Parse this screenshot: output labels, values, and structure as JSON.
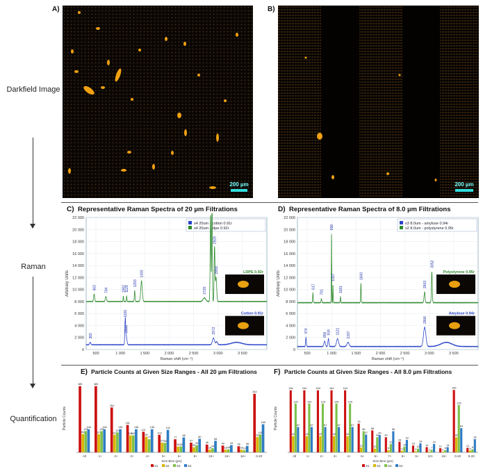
{
  "stages": [
    "Darkfield Image",
    "Raman",
    "Quantification"
  ],
  "panelA": {
    "label": "A)",
    "scale_label": "200 µm"
  },
  "panelB": {
    "label": "B)",
    "scale_label": "200 µm"
  },
  "panelC": {
    "label": "C)",
    "title": "Representative Raman Spectra of 20 µm Filtrations"
  },
  "panelD": {
    "label": "D)",
    "title": "Representative Raman Spectra of 8.0 µm Filtrations"
  },
  "panelE": {
    "label": "E)",
    "title": "Particle Counts at Given Size Ranges - All 20 µm Filtrations"
  },
  "panelF": {
    "label": "F)",
    "title": "Particle Counts at Given Size Ranges - All 8.0 µm Filtrations"
  },
  "colors": {
    "green": "#2e8b2e",
    "blue": "#2a44c8",
    "red": "#cc1111",
    "yellow": "#d8b400",
    "lightgreen": "#7cc04a",
    "midblue": "#2f7cc4"
  },
  "chart_data": [
    {
      "id": "C",
      "type": "line",
      "xlabel": "Raman shift (cm⁻¹)",
      "ylabel": "Arbitrary Units",
      "xlim": [
        300,
        4000
      ],
      "ylim": [
        0,
        22000
      ],
      "x_ticks": [
        500,
        1000,
        1500,
        2000,
        2500,
        3000,
        3500
      ],
      "x_tick_labels": [
        "500",
        "1 000",
        "1 500",
        "2 000",
        "2 500",
        "3 000",
        "3 500"
      ],
      "y_ticks": [
        0,
        2000,
        4000,
        6000,
        8000,
        10000,
        12000,
        14000,
        16000,
        18000,
        20000,
        22000
      ],
      "y_tick_labels": [
        "0",
        "2 000",
        "4 000",
        "6 000",
        "8 000",
        "10 000",
        "12 000",
        "14 000",
        "16 000",
        "18 000",
        "20 000",
        "22 000"
      ],
      "legend": [
        "s4 20um - cotton 0.91r",
        "s4 20um - ldpe 0.92r"
      ],
      "series": [
        {
          "name": "s4 20um - ldpe 0.92r",
          "color": "green",
          "baseline": 8000,
          "peaks": [
            [
              463,
              1200,
              15
            ],
            [
              704,
              800,
              18
            ],
            [
              1062,
              900,
              8
            ],
            [
              1129,
              900,
              8
            ],
            [
              1293,
              1800,
              10
            ],
            [
              1433,
              3400,
              22
            ],
            [
              2720,
              600,
              40
            ],
            [
              2847,
              14500,
              12
            ],
            [
              2877,
              18000,
              10
            ],
            [
              2929,
              9000,
              12
            ],
            [
              2959,
              4000,
              18
            ]
          ]
        },
        {
          "name": "s4 20um - cotton 0.91r",
          "color": "blue",
          "baseline": 800,
          "peaks": [
            [
              383,
              400,
              18
            ],
            [
              1100,
              4000,
              12
            ],
            [
              1120,
              1400,
              20
            ],
            [
              2906,
              1100,
              30
            ],
            [
              2972,
              500,
              25
            ],
            [
              3380,
              400,
              150
            ]
          ]
        }
      ],
      "peak_labels_top": [
        "463",
        "704",
        "1062",
        "1129",
        "1293",
        "1433",
        "2720",
        "2847",
        "2877",
        "2929",
        "2959"
      ],
      "peak_labels_bottom": [
        "383",
        "1100",
        "2906",
        "2972"
      ],
      "insets": [
        "LDPE 0.92r",
        "Cotton 0.91r"
      ]
    },
    {
      "id": "D",
      "type": "line",
      "xlabel": "Raman shift (cm⁻¹)",
      "ylabel": "Arbitrary Units",
      "xlim": [
        300,
        4000
      ],
      "ylim": [
        0,
        22000
      ],
      "x_ticks": [
        500,
        1000,
        1500,
        2000,
        2500,
        3000,
        3500
      ],
      "x_tick_labels": [
        "500",
        "1 000",
        "1 500",
        "2 000",
        "2 500",
        "3 000",
        "3 500"
      ],
      "y_ticks": [
        0,
        2000,
        4000,
        6000,
        8000,
        10000,
        12000,
        14000,
        16000,
        18000,
        20000,
        22000
      ],
      "y_tick_labels": [
        "0",
        "2 000",
        "4 000",
        "6 000",
        "8 000",
        "10 000",
        "12 000",
        "14 000",
        "16 000",
        "18 000",
        "20 000",
        "22 000"
      ],
      "legend": [
        "s3 8.0um - amylose 0.94r",
        "s2 8.0um - polystyrene 0.95r"
      ],
      "series": [
        {
          "name": "s2 8.0um - polystyrene 0.95r",
          "color": "green",
          "baseline": 7800,
          "peaks": [
            [
              617,
              1600,
              8
            ],
            [
              791,
              700,
              10
            ],
            [
              998,
              11500,
              6
            ],
            [
              1027,
              3000,
              6
            ],
            [
              1181,
              1000,
              8
            ],
            [
              1600,
              3200,
              8
            ],
            [
              2903,
              1800,
              15
            ],
            [
              3052,
              5200,
              12
            ]
          ]
        },
        {
          "name": "s3 8.0um - amylose 0.94r",
          "color": "blue",
          "baseline": 500,
          "peaks": [
            [
              474,
              1500,
              10
            ],
            [
              856,
              900,
              20
            ],
            [
              934,
              1300,
              15
            ],
            [
              1121,
              1300,
              30
            ],
            [
              1337,
              700,
              30
            ],
            [
              2906,
              3200,
              35
            ],
            [
              3350,
              700,
              160
            ]
          ]
        }
      ],
      "peak_labels_top": [
        "617",
        "791",
        "998",
        "1027",
        "1181",
        "1600",
        "2903",
        "3052"
      ],
      "peak_labels_bottom": [
        "474",
        "856",
        "934",
        "1121",
        "1337",
        "2906"
      ],
      "insets": [
        "Polystyrene 0.95r",
        "Amylose 0.94r"
      ]
    },
    {
      "id": "E",
      "type": "bar",
      "ylabel": "Particle Counts",
      "xlabel": "Size Bins (µm)",
      "ylim": [
        0,
        400
      ],
      "categories": [
        "All",
        "1+",
        "2+",
        "3+",
        "4+",
        "5+",
        "6+",
        "8+",
        "10+",
        "15+",
        "18+",
        "0-20"
      ],
      "series": [
        {
          "name": "S1",
          "color": "red",
          "values": [
            389,
            389,
            264,
            161,
            121,
            103,
            77,
            57,
            46,
            40,
            36,
            344
          ]
        },
        {
          "name": "S2",
          "color": "yellow",
          "values": [
            108,
            107,
            103,
            100,
            92,
            57,
            34,
            30,
            16,
            16,
            16,
            90
          ]
        },
        {
          "name": "S3",
          "color": "lightgreen",
          "values": [
            125,
            125,
            117,
            100,
            77,
            56,
            35,
            42,
            24,
            18,
            12,
            105
          ]
        },
        {
          "name": "S4",
          "color": "midblue",
          "values": [
            136,
            136,
            136,
            136,
            136,
            132,
            88,
            80,
            68,
            43,
            38,
            165
          ]
        }
      ]
    },
    {
      "id": "F",
      "type": "bar",
      "ylabel": "Particle Counts",
      "xlabel": "Size Bins (µm)",
      "ylim": [
        0,
        180
      ],
      "categories": [
        "All",
        "1+",
        "2+",
        "3+",
        "4+",
        "5+",
        "6+",
        "7+",
        "8+",
        "9+",
        "10+",
        "15+",
        "0-20",
        "8-20"
      ],
      "series": [
        {
          "name": "S1",
          "color": "red",
          "values": [
            164,
            164,
            164,
            164,
            164,
            76,
            58,
            40,
            28,
            18,
            14,
            11,
            165,
            12
          ]
        },
        {
          "name": "S2",
          "color": "yellow",
          "values": [
            43,
            43,
            43,
            43,
            43,
            13,
            10,
            6,
            4,
            3,
            2,
            2,
            40,
            5
          ]
        },
        {
          "name": "S3",
          "color": "lightgreen",
          "values": [
            129,
            129,
            129,
            129,
            129,
            56,
            40,
            22,
            15,
            10,
            7,
            6,
            125,
            8
          ]
        },
        {
          "name": "S4",
          "color": "midblue",
          "values": [
            67,
            67,
            67,
            67,
            67,
            47,
            46,
            56,
            33,
            24,
            22,
            14,
            64,
            35
          ]
        }
      ]
    }
  ]
}
